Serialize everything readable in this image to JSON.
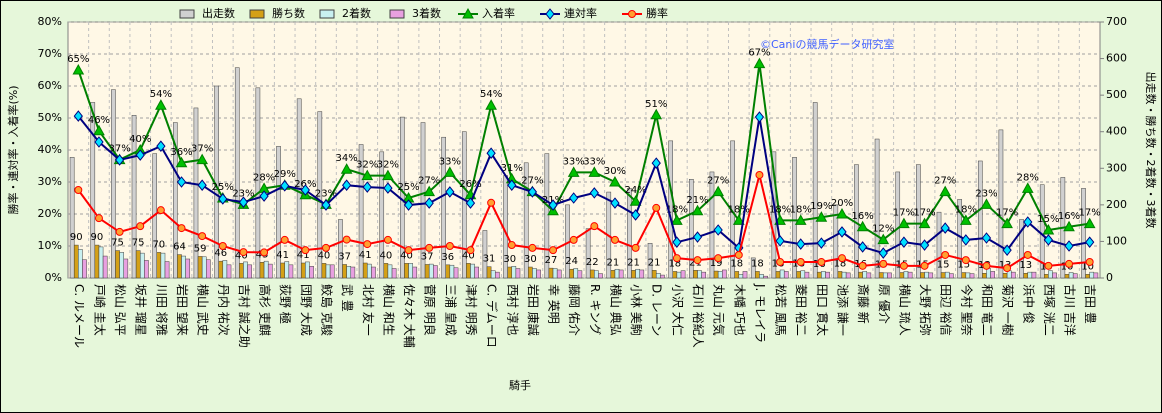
{
  "chart_data": {
    "type": "combo",
    "watermark": "©Caniの競馬データ研究室",
    "x_label": "騎手",
    "y_label": "勝率・連対率・入着率(%)",
    "y2_label": "出走数・勝ち数・2着数・3着数",
    "categories": [
      "C. ルメール",
      "戸崎 圭太",
      "松山 弘平",
      "坂井 瑠星",
      "川田 将雅",
      "岩田 望来",
      "横山 武史",
      "丹内 祐次",
      "吉村 誠之助",
      "高杉 吏麒",
      "荻野 極",
      "団野 大成",
      "鮫島 克駿",
      "武 豊",
      "北村 友一",
      "横山 和生",
      "佐々木 大輔",
      "菅原 明良",
      "三浦 皇成",
      "津村 明秀",
      "C. デムーロ",
      "西村 淳也",
      "岩田 康誠",
      "幸 英明",
      "藤岡 佑介",
      "R. キング",
      "横山 典弘",
      "小林 美駒",
      "D. レーン",
      "小沢 大仁",
      "石川 裕紀人",
      "丸山 元気",
      "木幡 巧也",
      "J. モレイラ",
      "松若 風馬",
      "菱田 裕二",
      "田口 貫太",
      "池添 謙一",
      "斎藤 新",
      "原 優介",
      "横山 琉人",
      "大野 拓弥",
      "田辺 裕信",
      "今村 聖奈",
      "和田 竜二",
      "菊沢 一樹",
      "浜中 俊",
      "西塚 洸二",
      "古川 吉洋",
      "吉田 豊"
    ],
    "ylim": [
      0,
      80
    ],
    "yticks": [
      {
        "value": 0,
        "label": "0%"
      },
      {
        "value": 10,
        "label": "10%"
      },
      {
        "value": 20,
        "label": "20%"
      },
      {
        "value": 30,
        "label": "30%"
      },
      {
        "value": 40,
        "label": "40%"
      },
      {
        "value": 50,
        "label": "50%"
      },
      {
        "value": 60,
        "label": "60%"
      },
      {
        "value": 70,
        "label": "70%"
      },
      {
        "value": 80,
        "label": "80%"
      }
    ],
    "y2lim": [
      0,
      700
    ],
    "y2ticks": [
      0,
      100,
      200,
      300,
      400,
      500,
      600,
      700
    ],
    "grid": true,
    "series": [
      {
        "name": "出走数",
        "type": "bar",
        "axis": "y2",
        "color": "#d0d0d0",
        "values": [
          330,
          480,
          515,
          445,
          340,
          425,
          465,
          525,
          575,
          520,
          360,
          490,
          455,
          160,
          365,
          345,
          440,
          425,
          385,
          400,
          130,
          280,
          315,
          340,
          200,
          135,
          235,
          245,
          95,
          375,
          270,
          290,
          375,
          55,
          345,
          330,
          480,
          200,
          310,
          380,
          290,
          310,
          180,
          215,
          320,
          405,
          160,
          255,
          275,
          245
        ]
      },
      {
        "name": "勝ち数",
        "type": "bar",
        "axis": "y2",
        "color": "#d4a017",
        "labels": true,
        "values": [
          90,
          90,
          75,
          75,
          70,
          64,
          59,
          46,
          40,
          43,
          41,
          41,
          40,
          37,
          41,
          40,
          40,
          37,
          36,
          40,
          31,
          30,
          30,
          27,
          24,
          22,
          21,
          21,
          21,
          18,
          21,
          19,
          18,
          18,
          18,
          18,
          16,
          18,
          16,
          15,
          15,
          15,
          15,
          15,
          13,
          13,
          13,
          10,
          10,
          10
        ]
      },
      {
        "name": "2着数",
        "type": "bar",
        "axis": "y2",
        "color": "#c8f0f0",
        "values": [
          78,
          85,
          70,
          68,
          68,
          60,
          58,
          48,
          44,
          46,
          45,
          44,
          36,
          32,
          38,
          36,
          40,
          38,
          35,
          38,
          20,
          32,
          26,
          26,
          26,
          20,
          24,
          24,
          13,
          16,
          20,
          18,
          10,
          10,
          22,
          20,
          18,
          16,
          18,
          14,
          18,
          16,
          16,
          14,
          26,
          20,
          16,
          20,
          15,
          16
        ]
      },
      {
        "name": "3着数",
        "type": "bar",
        "axis": "y2",
        "color": "#e8a0e0",
        "values": [
          50,
          60,
          52,
          48,
          45,
          52,
          50,
          36,
          36,
          38,
          36,
          32,
          36,
          30,
          30,
          26,
          30,
          34,
          28,
          30,
          16,
          26,
          22,
          22,
          20,
          12,
          22,
          22,
          8,
          20,
          16,
          22,
          18,
          5,
          18,
          16,
          16,
          14,
          14,
          14,
          16,
          14,
          12,
          12,
          18,
          16,
          16,
          14,
          12,
          14
        ]
      },
      {
        "name": "入着率",
        "type": "line",
        "axis": "y",
        "color": "#008000",
        "marker": "triangle",
        "fillc": "#00c000",
        "values": [
          65,
          46,
          37,
          40,
          54,
          36,
          37,
          25,
          23,
          28,
          29,
          26,
          23,
          34,
          32,
          32,
          25,
          27,
          33,
          26,
          54,
          31,
          27,
          21,
          33,
          33,
          30,
          24,
          51,
          18,
          21,
          27,
          18,
          67,
          18,
          18,
          19,
          20,
          16,
          12,
          17,
          17,
          27,
          18,
          23,
          17,
          28,
          15,
          16,
          17
        ],
        "value_labels": [
          "65%",
          "46%",
          "37%",
          "40%",
          "54%",
          "36%",
          "37%",
          "25%",
          "23%",
          "28%",
          "29%",
          "26%",
          "23%",
          "34%",
          "32%",
          "32%",
          "25%",
          "27%",
          "33%",
          "26%",
          "54%",
          "31%",
          "27%",
          "21%",
          "33%",
          "33%",
          "30%",
          "24%",
          "51%",
          "18%",
          "21%",
          "27%",
          "18%",
          "67%",
          "18%",
          "18%",
          "19%",
          "20%",
          "16%",
          "12%",
          "17%",
          "17%",
          "27%",
          "18%",
          "23%",
          "17%",
          "28%",
          "15%",
          "16%",
          "17%"
        ]
      },
      {
        "name": "連対率",
        "type": "line",
        "axis": "y",
        "color": "#000080",
        "marker": "diamond",
        "fillc": "#00e0ff",
        "values": [
          50.6,
          42.5,
          36.9,
          38.4,
          41.2,
          30,
          29,
          24.7,
          23.7,
          25.6,
          28.8,
          27.5,
          22.8,
          29,
          28.4,
          28.1,
          22.8,
          23.4,
          26.9,
          23.4,
          39,
          29,
          26.9,
          22.8,
          25,
          26.6,
          23.4,
          19.7,
          35.9,
          11.2,
          12.8,
          15,
          9.4,
          50.3,
          11.6,
          10.6,
          10.9,
          14.4,
          9.7,
          7.8,
          11.2,
          10.3,
          15.6,
          11.9,
          12.5,
          8.7,
          17.5,
          11.9,
          10,
          11.2
        ]
      },
      {
        "name": "勝率",
        "type": "line",
        "axis": "y",
        "color": "#ff0000",
        "marker": "circle",
        "fillc": "#ffa030",
        "values": [
          27.5,
          18.7,
          14.4,
          16.2,
          21.2,
          15.6,
          13.1,
          10,
          8.1,
          8,
          11.9,
          8.7,
          9.4,
          12,
          10.6,
          11.9,
          8.7,
          9.4,
          10,
          8.7,
          23.5,
          10.3,
          9.4,
          8.7,
          11.9,
          16.2,
          11.9,
          9.4,
          21.9,
          6.2,
          5.6,
          6.2,
          7.2,
          32.2,
          5,
          5,
          5,
          6.2,
          3.8,
          4.4,
          3.8,
          3.8,
          7.2,
          5.6,
          3.8,
          3.1,
          7.2,
          3.8,
          4.4,
          5
        ]
      }
    ]
  }
}
